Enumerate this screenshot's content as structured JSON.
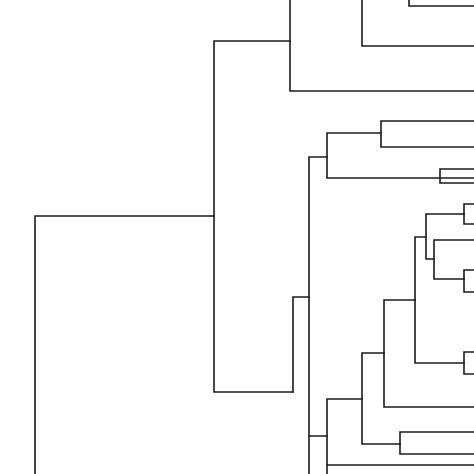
{
  "diagram": {
    "type": "dendrogram",
    "orientation": "left-to-right",
    "line_color": "#1a1a1a",
    "background": "#ffffff",
    "labels_visible": false
  }
}
